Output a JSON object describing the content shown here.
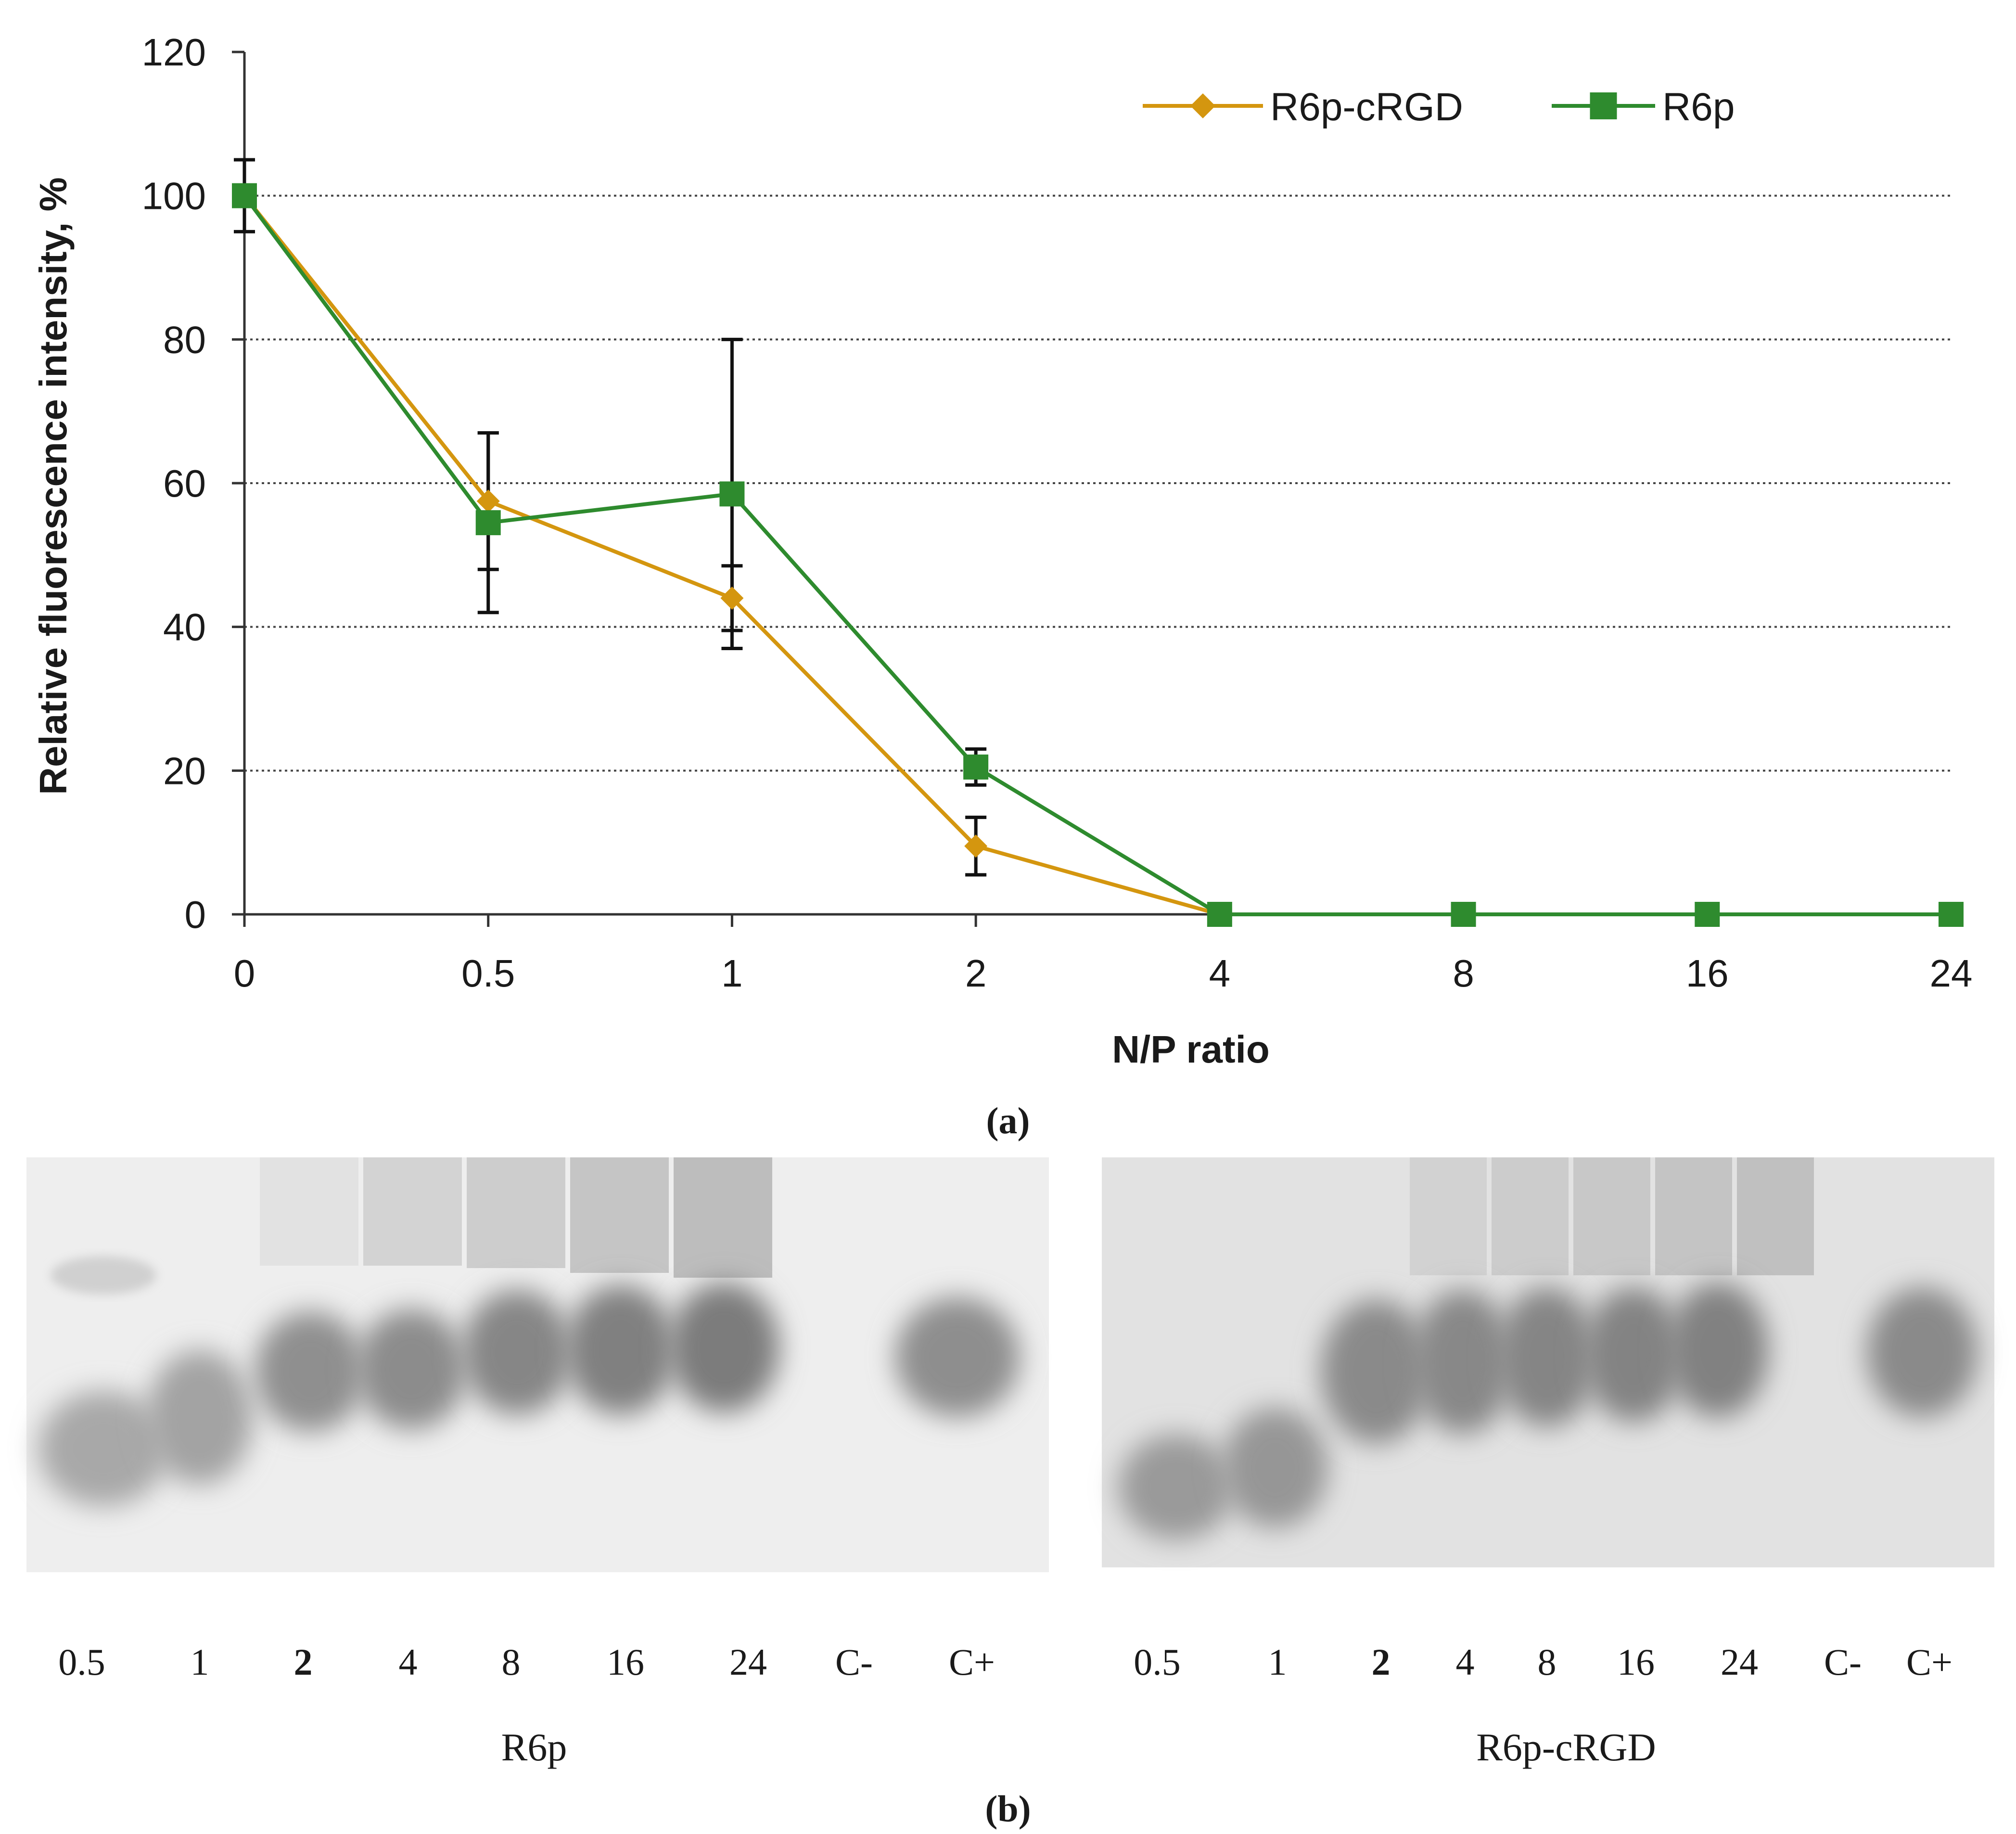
{
  "panel_a_label": "(a)",
  "panel_b_label": "(b)",
  "chart_data": {
    "type": "line",
    "title": "",
    "xlabel": "N/P ratio",
    "ylabel": "Relative fluorescence intensity, %",
    "categories": [
      "0",
      "0.5",
      "1",
      "2",
      "4",
      "8",
      "16",
      "24"
    ],
    "ylim": [
      0,
      120
    ],
    "yticks": [
      0,
      20,
      40,
      60,
      80,
      100,
      120
    ],
    "grid": "horizontal dotted",
    "legend_position": "top-right",
    "series": [
      {
        "name": "R6p-cRGD",
        "color": "#d4960f",
        "marker": "diamond",
        "values": [
          100,
          57.5,
          44,
          9.5,
          0,
          0,
          0,
          0
        ],
        "errors": [
          0,
          9.5,
          4.5,
          4,
          0,
          0,
          0,
          0
        ]
      },
      {
        "name": "R6p",
        "color": "#2e8b2e",
        "marker": "square",
        "values": [
          100,
          54.5,
          58.5,
          20.5,
          0,
          0,
          0,
          0
        ],
        "errors": [
          5,
          12.5,
          21.5,
          2.5,
          0,
          1,
          1.5,
          0.5
        ]
      }
    ]
  },
  "gels": [
    {
      "caption": "R6p",
      "lanes": [
        "0.5",
        "1",
        "2",
        "4",
        "8",
        "16",
        "24",
        "C-",
        "C+"
      ]
    },
    {
      "caption": "R6p-cRGD",
      "lanes": [
        "0.5",
        "1",
        "2",
        "4",
        "8",
        "16",
        "24",
        "C-",
        "C+"
      ]
    }
  ]
}
